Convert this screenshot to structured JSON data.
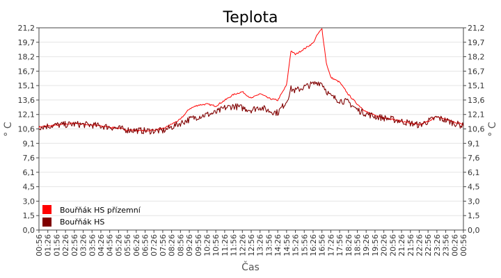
{
  "chart_data": {
    "type": "line",
    "title": "Teplota",
    "xlabel": "Čas",
    "ylabel_left": "° C",
    "ylabel_right": "° C",
    "y_ticks": [
      "0,0",
      "1,5",
      "3,0",
      "4,5",
      "6,1",
      "7,6",
      "9,1",
      "10,6",
      "12,1",
      "13,6",
      "15,1",
      "16,7",
      "18,2",
      "19,7",
      "21,2"
    ],
    "ylim": [
      0,
      21.2
    ],
    "x_ticks": [
      "00:56",
      "01:26",
      "01:56",
      "02:26",
      "02:56",
      "03:26",
      "03:56",
      "04:26",
      "04:56",
      "05:26",
      "05:56",
      "06:26",
      "06:56",
      "07:26",
      "07:56",
      "08:26",
      "08:56",
      "09:26",
      "09:56",
      "10:26",
      "10:56",
      "11:26",
      "11:56",
      "12:26",
      "12:56",
      "13:26",
      "13:56",
      "14:26",
      "14:56",
      "15:26",
      "15:56",
      "16:26",
      "16:56",
      "17:26",
      "17:56",
      "18:26",
      "18:56",
      "19:26",
      "19:56",
      "20:26",
      "20:56",
      "21:26",
      "21:56",
      "22:26",
      "22:56",
      "23:26",
      "23:56",
      "00:26",
      "00:56"
    ],
    "grid": true,
    "legend_position": "bottom-left",
    "series": [
      {
        "name": "Bouřňák HS přízemní",
        "color": "#ff0000",
        "x": [
          "00:56",
          "01:56",
          "02:56",
          "03:56",
          "04:56",
          "05:56",
          "06:56",
          "07:56",
          "08:56",
          "09:26",
          "09:56",
          "10:26",
          "10:56",
          "11:26",
          "11:56",
          "12:26",
          "12:56",
          "13:26",
          "13:56",
          "14:26",
          "14:56",
          "15:11",
          "15:26",
          "15:56",
          "16:26",
          "16:41",
          "16:56",
          "17:11",
          "17:26",
          "17:56",
          "18:26",
          "18:56",
          "19:26",
          "19:56",
          "20:56",
          "21:56",
          "22:26",
          "22:56",
          "23:26",
          "23:56",
          "00:26",
          "00:56"
        ],
        "values": [
          10.8,
          11.0,
          11.2,
          11.0,
          10.8,
          10.5,
          10.4,
          10.6,
          11.6,
          12.7,
          13.1,
          13.2,
          13.0,
          13.6,
          14.2,
          14.5,
          13.8,
          14.3,
          13.8,
          13.6,
          15.2,
          18.8,
          18.4,
          19.0,
          19.6,
          20.5,
          21.1,
          17.5,
          16.0,
          15.5,
          14.2,
          13.2,
          12.4,
          12.0,
          11.6,
          11.2,
          11.0,
          11.4,
          11.9,
          11.6,
          11.3,
          11.1
        ]
      },
      {
        "name": "Bouřňák HS",
        "color": "#800000",
        "x": [
          "00:56",
          "01:56",
          "02:56",
          "03:56",
          "04:56",
          "05:56",
          "06:56",
          "07:56",
          "08:56",
          "09:26",
          "09:56",
          "10:26",
          "10:56",
          "11:26",
          "11:56",
          "12:26",
          "12:56",
          "13:26",
          "13:56",
          "14:26",
          "14:56",
          "15:11",
          "15:26",
          "15:56",
          "16:26",
          "16:41",
          "16:56",
          "17:11",
          "17:26",
          "17:56",
          "18:26",
          "18:56",
          "19:26",
          "19:56",
          "20:56",
          "21:56",
          "22:26",
          "22:56",
          "23:26",
          "23:56",
          "00:26",
          "00:56"
        ],
        "values": [
          10.8,
          11.0,
          11.1,
          11.0,
          10.8,
          10.5,
          10.4,
          10.4,
          11.2,
          11.6,
          11.9,
          12.1,
          12.3,
          12.8,
          13.0,
          12.8,
          12.6,
          12.9,
          12.5,
          12.3,
          13.5,
          14.8,
          14.6,
          15.0,
          15.3,
          15.5,
          15.4,
          14.6,
          14.0,
          13.6,
          13.4,
          12.6,
          12.2,
          11.9,
          11.6,
          11.2,
          11.0,
          11.4,
          11.8,
          11.5,
          11.2,
          10.9
        ]
      }
    ]
  }
}
